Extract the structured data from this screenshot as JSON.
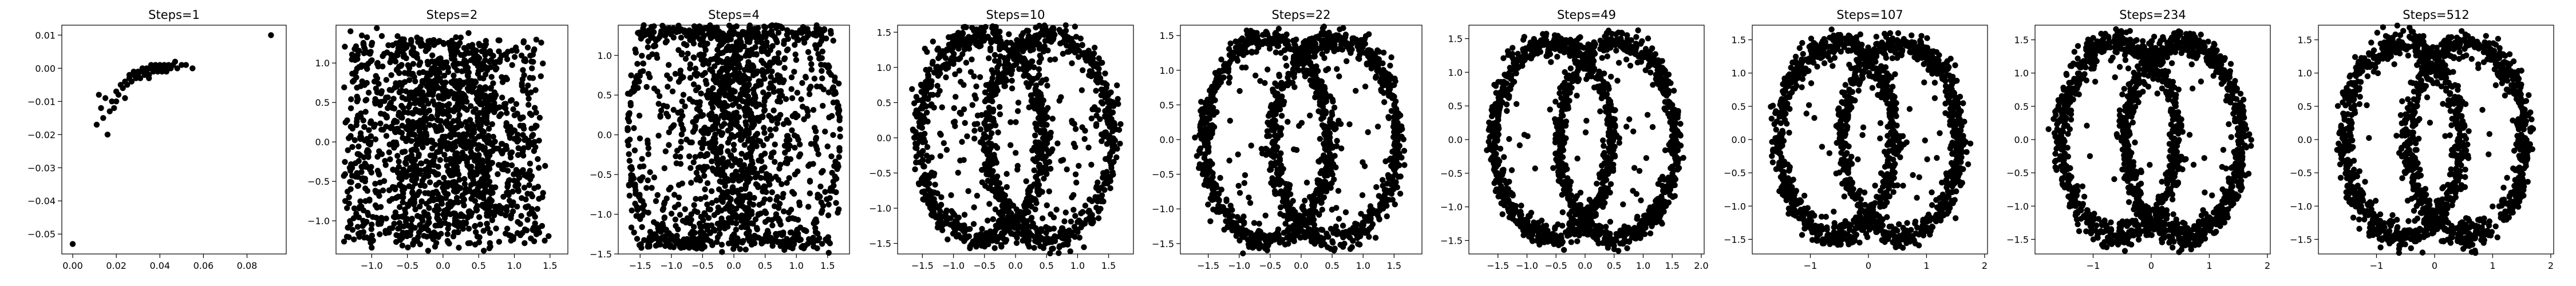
{
  "chart_data": [
    {
      "type": "scatter",
      "title": "Steps=1",
      "color": "#000000",
      "xlim": [
        -0.005,
        0.098
      ],
      "ylim": [
        -0.056,
        0.013
      ],
      "xticks": [
        {
          "v": 0.0,
          "label": "0.00"
        },
        {
          "v": 0.02,
          "label": "0.02"
        },
        {
          "v": 0.04,
          "label": "0.04"
        },
        {
          "v": 0.06,
          "label": "0.06"
        },
        {
          "v": 0.08,
          "label": "0.08"
        }
      ],
      "yticks": [
        {
          "v": 0.01,
          "label": "0.01"
        },
        {
          "v": 0.0,
          "label": "0.00"
        },
        {
          "v": -0.01,
          "label": "−0.01"
        },
        {
          "v": -0.02,
          "label": "−0.02"
        },
        {
          "v": -0.03,
          "label": "−0.03"
        },
        {
          "v": -0.04,
          "label": "−0.04"
        },
        {
          "v": -0.05,
          "label": "−0.05"
        }
      ],
      "points": [
        [
          0.0,
          -0.053
        ],
        [
          0.091,
          0.01
        ],
        [
          0.011,
          -0.017
        ],
        [
          0.016,
          -0.02
        ],
        [
          0.012,
          -0.008
        ],
        [
          0.015,
          -0.009
        ],
        [
          0.018,
          -0.01
        ],
        [
          0.013,
          -0.012
        ],
        [
          0.02,
          -0.007
        ],
        [
          0.022,
          -0.005
        ],
        [
          0.024,
          -0.004
        ],
        [
          0.026,
          -0.003
        ],
        [
          0.028,
          -0.002
        ],
        [
          0.03,
          -0.002
        ],
        [
          0.032,
          -0.001
        ],
        [
          0.034,
          -0.001
        ],
        [
          0.036,
          0.0
        ],
        [
          0.038,
          0.0
        ],
        [
          0.04,
          0.0
        ],
        [
          0.042,
          0.0
        ],
        [
          0.044,
          0.0
        ],
        [
          0.046,
          0.001
        ],
        [
          0.048,
          0.0
        ],
        [
          0.052,
          0.001
        ],
        [
          0.055,
          0.0
        ],
        [
          0.019,
          -0.012
        ],
        [
          0.021,
          -0.008
        ],
        [
          0.023,
          -0.006
        ],
        [
          0.025,
          -0.005
        ],
        [
          0.027,
          -0.004
        ],
        [
          0.029,
          -0.003
        ],
        [
          0.031,
          -0.003
        ],
        [
          0.033,
          -0.002
        ],
        [
          0.035,
          -0.002
        ],
        [
          0.037,
          -0.001
        ],
        [
          0.039,
          -0.001
        ],
        [
          0.041,
          -0.001
        ],
        [
          0.043,
          -0.001
        ],
        [
          0.045,
          0.0
        ],
        [
          0.026,
          -0.002
        ],
        [
          0.028,
          -0.001
        ],
        [
          0.03,
          -0.001
        ],
        [
          0.032,
          0.0
        ],
        [
          0.034,
          0.0
        ],
        [
          0.036,
          0.001
        ],
        [
          0.038,
          0.001
        ],
        [
          0.04,
          0.001
        ],
        [
          0.042,
          0.001
        ],
        [
          0.017,
          -0.013
        ],
        [
          0.014,
          -0.015
        ],
        [
          0.024,
          -0.009
        ],
        [
          0.02,
          -0.01
        ],
        [
          0.035,
          -0.003
        ],
        [
          0.044,
          0.001
        ],
        [
          0.047,
          0.002
        ],
        [
          0.05,
          0.001
        ]
      ]
    },
    {
      "type": "scatter",
      "title": "Steps=2",
      "color": "#000000",
      "xlim": [
        -1.5,
        1.75
      ],
      "ylim": [
        -1.42,
        1.48
      ],
      "xticks": [
        {
          "v": -1.0,
          "label": "−1.0"
        },
        {
          "v": -0.5,
          "label": "−0.5"
        },
        {
          "v": 0.0,
          "label": "0.0"
        },
        {
          "v": 0.5,
          "label": "0.5"
        },
        {
          "v": 1.0,
          "label": "1.0"
        },
        {
          "v": 1.5,
          "label": "1.5"
        }
      ],
      "yticks": [
        {
          "v": 1.0,
          "label": "1.0"
        },
        {
          "v": 0.5,
          "label": "0.5"
        },
        {
          "v": 0.0,
          "label": "0.0"
        },
        {
          "v": -0.5,
          "label": "−0.5"
        },
        {
          "v": -1.0,
          "label": "−1.0"
        }
      ]
    },
    {
      "type": "scatter",
      "title": "Steps=4",
      "color": "#000000",
      "xlim": [
        -1.85,
        1.85
      ],
      "ylim": [
        -1.5,
        1.38
      ],
      "xticks": [
        {
          "v": -1.5,
          "label": "−1.5"
        },
        {
          "v": -1.0,
          "label": "−1.0"
        },
        {
          "v": -0.5,
          "label": "−0.5"
        },
        {
          "v": 0.0,
          "label": "0.0"
        },
        {
          "v": 0.5,
          "label": "0.5"
        },
        {
          "v": 1.0,
          "label": "1.0"
        },
        {
          "v": 1.5,
          "label": "1.5"
        }
      ],
      "yticks": [
        {
          "v": 1.0,
          "label": "1.0"
        },
        {
          "v": 0.5,
          "label": "0.5"
        },
        {
          "v": 0.0,
          "label": "0.0"
        },
        {
          "v": -0.5,
          "label": "−0.5"
        },
        {
          "v": -1.0,
          "label": "−1.0"
        },
        {
          "v": -1.5,
          "label": "−1.5"
        }
      ]
    },
    {
      "type": "scatter",
      "title": "Steps=10",
      "color": "#000000",
      "xlim": [
        -1.9,
        1.9
      ],
      "ylim": [
        -1.65,
        1.6
      ],
      "xticks": [
        {
          "v": -1.5,
          "label": "−1.5"
        },
        {
          "v": -1.0,
          "label": "−1.0"
        },
        {
          "v": -0.5,
          "label": "−0.5"
        },
        {
          "v": 0.0,
          "label": "0.0"
        },
        {
          "v": 0.5,
          "label": "0.5"
        },
        {
          "v": 1.0,
          "label": "1.0"
        },
        {
          "v": 1.5,
          "label": "1.5"
        }
      ],
      "yticks": [
        {
          "v": 1.5,
          "label": "1.5"
        },
        {
          "v": 1.0,
          "label": "1.0"
        },
        {
          "v": 0.5,
          "label": "0.5"
        },
        {
          "v": 0.0,
          "label": "0.0"
        },
        {
          "v": -0.5,
          "label": "−0.5"
        },
        {
          "v": -1.0,
          "label": "−1.0"
        },
        {
          "v": -1.5,
          "label": "−1.5"
        }
      ]
    },
    {
      "type": "scatter",
      "title": "Steps=22",
      "color": "#000000",
      "xlim": [
        -1.95,
        1.95
      ],
      "ylim": [
        -1.65,
        1.65
      ],
      "xticks": [
        {
          "v": -1.5,
          "label": "−1.5"
        },
        {
          "v": -1.0,
          "label": "−1.0"
        },
        {
          "v": -0.5,
          "label": "−0.5"
        },
        {
          "v": 0.0,
          "label": "0.0"
        },
        {
          "v": 0.5,
          "label": "0.5"
        },
        {
          "v": 1.0,
          "label": "1.0"
        },
        {
          "v": 1.5,
          "label": "1.5"
        }
      ],
      "yticks": [
        {
          "v": 1.5,
          "label": "1.5"
        },
        {
          "v": 1.0,
          "label": "1.0"
        },
        {
          "v": 0.5,
          "label": "0.5"
        },
        {
          "v": 0.0,
          "label": "0.0"
        },
        {
          "v": -0.5,
          "label": "−0.5"
        },
        {
          "v": -1.0,
          "label": "−1.0"
        },
        {
          "v": -1.5,
          "label": "−1.5"
        }
      ]
    },
    {
      "type": "scatter",
      "title": "Steps=49",
      "color": "#000000",
      "xlim": [
        -2.0,
        2.05
      ],
      "ylim": [
        -1.7,
        1.7
      ],
      "xticks": [
        {
          "v": -1.5,
          "label": "−1.5"
        },
        {
          "v": -1.0,
          "label": "−1.0"
        },
        {
          "v": -0.5,
          "label": "−0.5"
        },
        {
          "v": 0.0,
          "label": "0.0"
        },
        {
          "v": 0.5,
          "label": "0.5"
        },
        {
          "v": 1.0,
          "label": "1.0"
        },
        {
          "v": 1.5,
          "label": "1.5"
        },
        {
          "v": 2.0,
          "label": "2.0"
        }
      ],
      "yticks": [
        {
          "v": 1.5,
          "label": "1.5"
        },
        {
          "v": 1.0,
          "label": "1.0"
        },
        {
          "v": 0.5,
          "label": "0.5"
        },
        {
          "v": 0.0,
          "label": "0.0"
        },
        {
          "v": -0.5,
          "label": "−0.5"
        },
        {
          "v": -1.0,
          "label": "−1.0"
        },
        {
          "v": -1.5,
          "label": "−1.5"
        }
      ]
    },
    {
      "type": "scatter",
      "title": "Steps=107",
      "color": "#000000",
      "xlim": [
        -2.0,
        2.05
      ],
      "ylim": [
        -1.72,
        1.72
      ],
      "xticks": [
        {
          "v": -1,
          "label": "−1"
        },
        {
          "v": 0,
          "label": "0"
        },
        {
          "v": 1,
          "label": "1"
        },
        {
          "v": 2,
          "label": "2"
        }
      ],
      "yticks": [
        {
          "v": 1.5,
          "label": "1.5"
        },
        {
          "v": 1.0,
          "label": "1.0"
        },
        {
          "v": 0.5,
          "label": "0.5"
        },
        {
          "v": 0.0,
          "label": "0.0"
        },
        {
          "v": -0.5,
          "label": "−0.5"
        },
        {
          "v": -1.0,
          "label": "−1.0"
        },
        {
          "v": -1.5,
          "label": "−1.5"
        }
      ]
    },
    {
      "type": "scatter",
      "title": "Steps=234",
      "color": "#000000",
      "xlim": [
        -2.0,
        2.05
      ],
      "ylim": [
        -1.72,
        1.72
      ],
      "xticks": [
        {
          "v": -1,
          "label": "−1"
        },
        {
          "v": 0,
          "label": "0"
        },
        {
          "v": 1,
          "label": "1"
        },
        {
          "v": 2,
          "label": "2"
        }
      ],
      "yticks": [
        {
          "v": 1.5,
          "label": "1.5"
        },
        {
          "v": 1.0,
          "label": "1.0"
        },
        {
          "v": 0.5,
          "label": "0.5"
        },
        {
          "v": 0.0,
          "label": "0.0"
        },
        {
          "v": -0.5,
          "label": "−0.5"
        },
        {
          "v": -1.0,
          "label": "−1.0"
        },
        {
          "v": -1.5,
          "label": "−1.5"
        }
      ]
    },
    {
      "type": "scatter",
      "title": "Steps=512",
      "color": "#000000",
      "xlim": [
        -2.0,
        2.05
      ],
      "ylim": [
        -1.72,
        1.72
      ],
      "xticks": [
        {
          "v": -1,
          "label": "−1"
        },
        {
          "v": 0,
          "label": "0"
        },
        {
          "v": 1,
          "label": "1"
        },
        {
          "v": 2,
          "label": "2"
        }
      ],
      "yticks": [
        {
          "v": 1.5,
          "label": "1.5"
        },
        {
          "v": 1.0,
          "label": "1.0"
        },
        {
          "v": 0.5,
          "label": "0.5"
        },
        {
          "v": 0.0,
          "label": "0.0"
        },
        {
          "v": -0.5,
          "label": "−0.5"
        },
        {
          "v": -1.0,
          "label": "−1.0"
        },
        {
          "v": -1.5,
          "label": "−1.5"
        }
      ]
    }
  ]
}
